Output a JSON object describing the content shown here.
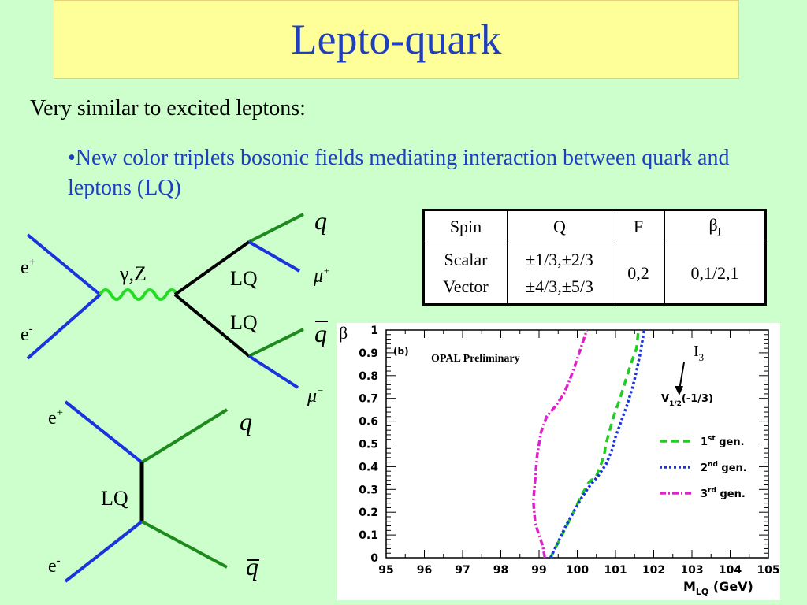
{
  "title": "Lepto-quark",
  "intro": "Very similar to excited leptons:",
  "bullet": "•New color triplets bosonic fields mediating interaction between quark and leptons (LQ)",
  "diagram1": {
    "e_plus": "e",
    "e_minus": "e",
    "plus_sup": "+",
    "minus_sup": "-",
    "boson": "γ,Z",
    "lq_top": "LQ",
    "lq_bottom": "LQ",
    "q": "q",
    "qbar": "q",
    "mu": "μ",
    "mu_plus_sup": "+",
    "mu_minus_sup": "−"
  },
  "diagram2": {
    "e_plus": "e",
    "e_minus": "e",
    "plus_sup": "+",
    "minus_sup": "-",
    "lq": "LQ",
    "q": "q",
    "qbar": "q"
  },
  "table": {
    "headers": [
      "Spin",
      "Q",
      "F",
      "β"
    ],
    "beta_sub": "l",
    "spin": [
      "Scalar",
      "Vector"
    ],
    "charge": [
      "±1/3,±2/3",
      "±4/3,±5/3"
    ],
    "F": "0,2",
    "beta": "0,1/2,1"
  },
  "chart_data": {
    "type": "line",
    "title": "OPAL Preliminary",
    "panel_label": "(b)",
    "ylabel": "β",
    "xlabel": "M",
    "xlabel_sub": "LQ",
    "xlabel_unit": " (GeV)",
    "xlim": [
      95,
      105
    ],
    "ylim": [
      0,
      1
    ],
    "xticks": [
      "95",
      "96",
      "97",
      "98",
      "99",
      "100",
      "101",
      "102",
      "103",
      "104",
      "105"
    ],
    "yticks": [
      "0",
      "0.1",
      "0.2",
      "0.3",
      "0.4",
      "0.5",
      "0.6",
      "0.7",
      "0.8",
      "0.9",
      "1"
    ],
    "annotation": {
      "label": "I",
      "label_sub": "3",
      "state": "V",
      "state_sub": "1/2",
      "state_charge": "(-1/3)"
    },
    "series": [
      {
        "name": "1st gen.",
        "name_base": "1",
        "name_sup": "st",
        "name_tail": " gen.",
        "color": "#22cc22",
        "dash": "9,6",
        "x": [
          99.3,
          99.6,
          99.9,
          100.1,
          100.3,
          100.5,
          100.6,
          100.7,
          100.75,
          100.85,
          100.95,
          101.1,
          101.25,
          101.4,
          101.55,
          101.6
        ],
        "y": [
          0.0,
          0.1,
          0.2,
          0.27,
          0.33,
          0.36,
          0.4,
          0.45,
          0.5,
          0.56,
          0.62,
          0.69,
          0.77,
          0.85,
          0.92,
          1.0
        ]
      },
      {
        "name": "2nd gen.",
        "name_base": "2",
        "name_sup": "nd",
        "name_tail": " gen.",
        "color": "#1a33dd",
        "dash": "3,3",
        "x": [
          99.3,
          99.5,
          99.7,
          99.9,
          100.1,
          100.3,
          100.55,
          100.75,
          100.9,
          101.0,
          101.15,
          101.3,
          101.45,
          101.55,
          101.65,
          101.75
        ],
        "y": [
          0.0,
          0.07,
          0.14,
          0.2,
          0.26,
          0.31,
          0.36,
          0.41,
          0.47,
          0.53,
          0.6,
          0.67,
          0.75,
          0.82,
          0.9,
          1.0
        ]
      },
      {
        "name": "3rd gen.",
        "name_base": "3",
        "name_sup": "rd",
        "name_tail": " gen.",
        "color": "#dd22cc",
        "dash": "8,3,2,3",
        "x": [
          99.15,
          99.1,
          99.0,
          98.9,
          98.85,
          98.9,
          98.95,
          99.05,
          99.2,
          99.45,
          99.65,
          99.8,
          99.95,
          100.05,
          100.15,
          100.25
        ],
        "y": [
          0.0,
          0.05,
          0.1,
          0.15,
          0.25,
          0.35,
          0.45,
          0.55,
          0.62,
          0.67,
          0.72,
          0.78,
          0.85,
          0.9,
          0.95,
          1.0
        ]
      }
    ]
  }
}
